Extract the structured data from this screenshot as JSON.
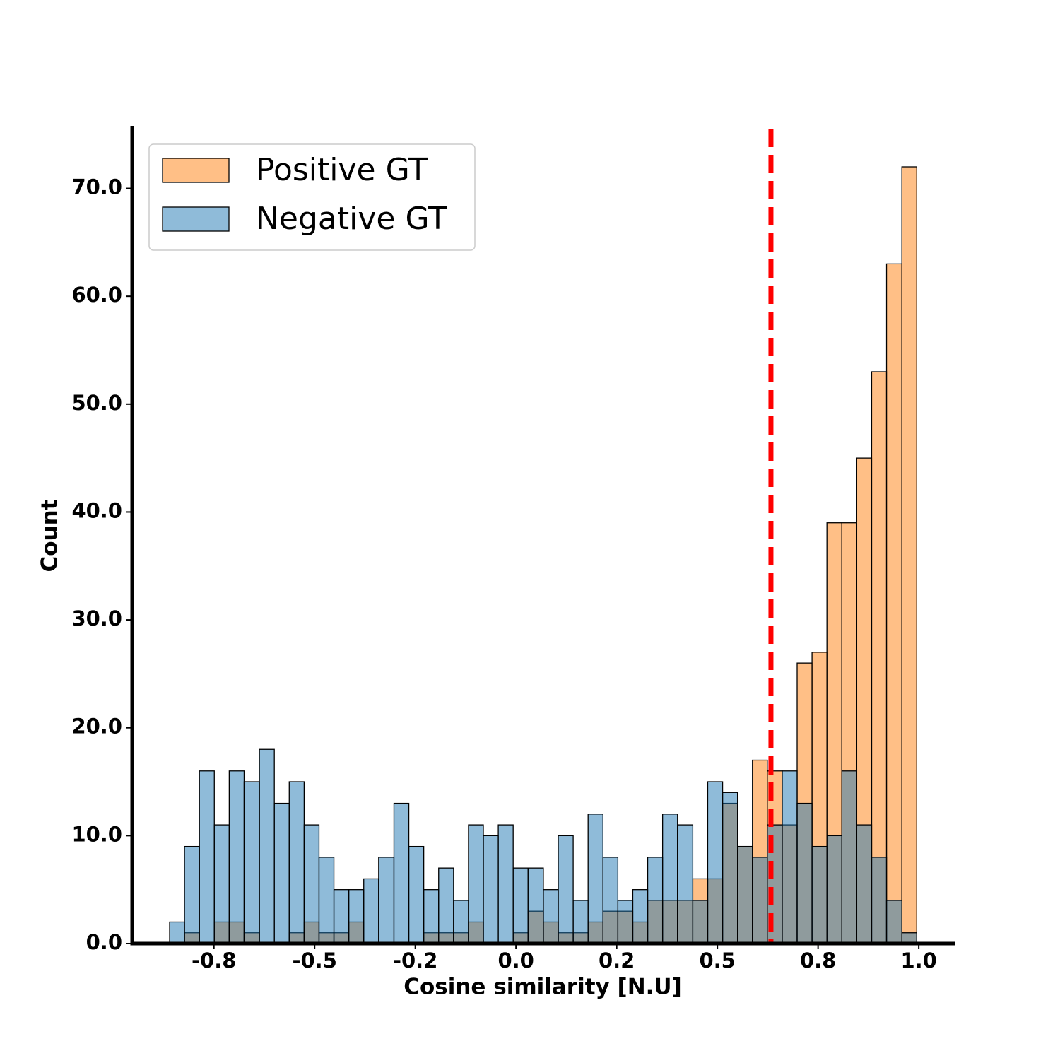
{
  "chart_data": {
    "type": "histogram",
    "xlabel": "Cosine similarity [N.U]",
    "ylabel": "Count",
    "bins": [
      -0.86,
      -0.823,
      -0.786,
      -0.749,
      -0.712,
      -0.675,
      -0.637,
      -0.6,
      -0.563,
      -0.526,
      -0.489,
      -0.452,
      -0.415,
      -0.378,
      -0.341,
      -0.303,
      -0.266,
      -0.229,
      -0.192,
      -0.155,
      -0.118,
      -0.081,
      -0.044,
      -0.007,
      0.03,
      0.068,
      0.105,
      0.142,
      0.179,
      0.216,
      0.253,
      0.29,
      0.327,
      0.364,
      0.401,
      0.439,
      0.476,
      0.513,
      0.55,
      0.587,
      0.624,
      0.661,
      0.698,
      0.735,
      0.772,
      0.809,
      0.846,
      0.883,
      0.92,
      0.958,
      0.995
    ],
    "series": [
      {
        "name": "Positive GT",
        "color": "#ff7f0e",
        "values": [
          0,
          1,
          0,
          2,
          2,
          1,
          0,
          0,
          1,
          2,
          1,
          1,
          2,
          0,
          0,
          0,
          0,
          1,
          1,
          1,
          2,
          0,
          0,
          1,
          3,
          2,
          1,
          1,
          2,
          3,
          3,
          2,
          4,
          4,
          4,
          6,
          6,
          13,
          9,
          17,
          16,
          11,
          26,
          27,
          39,
          39,
          45,
          53,
          63,
          72
        ]
      },
      {
        "name": "Negative GT",
        "color": "#1f77b4",
        "values": [
          2,
          9,
          16,
          11,
          16,
          15,
          18,
          13,
          15,
          11,
          8,
          5,
          5,
          6,
          8,
          13,
          9,
          5,
          7,
          4,
          11,
          10,
          11,
          7,
          7,
          5,
          10,
          4,
          12,
          8,
          4,
          5,
          8,
          12,
          11,
          4,
          15,
          14,
          9,
          8,
          11,
          16,
          13,
          9,
          10,
          16,
          11,
          8,
          4,
          1
        ]
      }
    ],
    "threshold": 0.633,
    "threshold_color": "#ff0000",
    "xlim": [
      -0.953,
      1.091
    ],
    "xticks": [
      {
        "value": -0.75,
        "label": "-0.8"
      },
      -0.5,
      {
        "value": -0.25,
        "label": "-0.2"
      },
      {
        "value": 0,
        "label": "0.0"
      },
      {
        "value": 0.25,
        "label": "0.2"
      },
      0.5,
      {
        "value": 0.75,
        "label": "0.8"
      },
      {
        "value": 1,
        "label": "1.0"
      }
    ],
    "ylim": [
      0,
      75.8
    ],
    "yticks": [
      {
        "value": 0,
        "label": "0.0"
      },
      {
        "value": 10,
        "label": "10.0"
      },
      {
        "value": 20,
        "label": "20.0"
      },
      {
        "value": 30,
        "label": "30.0"
      },
      {
        "value": 40,
        "label": "40.0"
      },
      {
        "value": 50,
        "label": "50.0"
      },
      {
        "value": 60,
        "label": "60.0"
      },
      {
        "value": 70,
        "label": "70.0"
      }
    ],
    "legend": "upper left"
  }
}
